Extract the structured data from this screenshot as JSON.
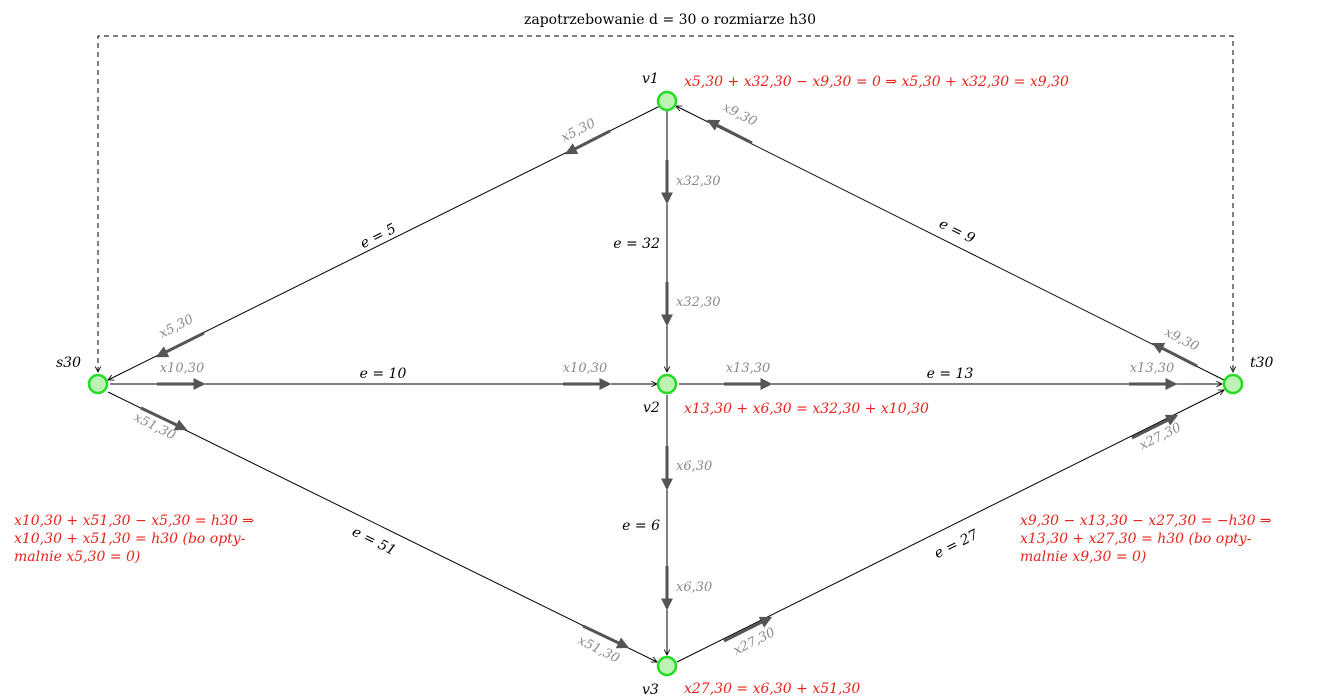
{
  "demand_label": "zapotrzebowanie d = 30 o rozmiarze h30",
  "nodes": {
    "v1": "v1",
    "v2": "v2",
    "v3": "v3",
    "s30": "s30",
    "t30": "t30"
  },
  "edges": {
    "e5": "e = 5",
    "e9": "e = 9",
    "e10": "e = 10",
    "e13": "e = 13",
    "e32": "e = 32",
    "e6": "e = 6",
    "e51": "e = 51",
    "e27": "e = 27"
  },
  "flows": {
    "x5_top": "x5,30",
    "x5_bottom": "x5,30",
    "x9_top": "x9,30",
    "x9_bottom": "x9,30",
    "x32_top": "x32,30",
    "x32_bottom": "x32,30",
    "x10_left": "x10,30",
    "x10_right": "x10,30",
    "x13_left": "x13,30",
    "x13_right": "x13,30",
    "x51_top": "x51,30",
    "x51_bottom": "x51,30",
    "x6_top": "x6,30",
    "x6_bottom": "x6,30",
    "x27_top": "x27,30",
    "x27_bottom": "x27,30"
  },
  "equations": {
    "v1": "x5,30 + x32,30 − x9,30 = 0 ⇒ x5,30 + x32,30 = x9,30",
    "v2": "x13,30 + x6,30 = x32,30 + x10,30",
    "v3": "x27,30 = x6,30 + x51,30",
    "s30": [
      "x10,30 + x51,30 − x5,30 = h30 ⇒",
      "x10,30 + x51,30 = h30 (bo opty-",
      "malnie x5,30 = 0)"
    ],
    "t30": [
      "x9,30 − x13,30 − x27,30 = −h30 ⇒",
      "x13,30 + x27,30 = h30 (bo opty-",
      "malnie x9,30 = 0)"
    ]
  }
}
